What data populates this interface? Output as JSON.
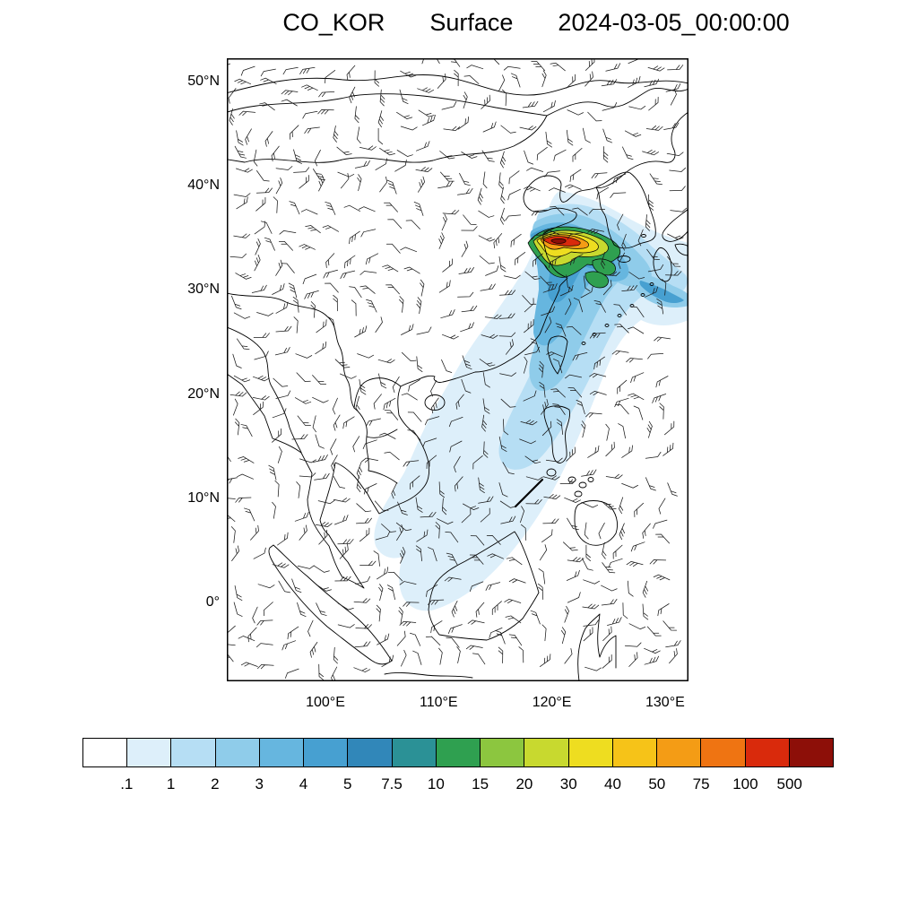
{
  "title": {
    "species": "CO_KOR",
    "level": "Surface",
    "datetime": "2024-03-05_00:00:00"
  },
  "axes": {
    "lat_labels": [
      {
        "text": "50°N",
        "value": 50
      },
      {
        "text": "40°N",
        "value": 40
      },
      {
        "text": "30°N",
        "value": 30
      },
      {
        "text": "20°N",
        "value": 20
      },
      {
        "text": "10°N",
        "value": 10
      },
      {
        "text": "0°",
        "value": 0
      }
    ],
    "lon_labels": [
      {
        "text": "100°E",
        "value": 100
      },
      {
        "text": "110°E",
        "value": 110
      },
      {
        "text": "120°E",
        "value": 120
      },
      {
        "text": "130°E",
        "value": 130
      }
    ]
  },
  "colorbar": {
    "tick_labels": [
      ".1",
      "1",
      "2",
      "3",
      "4",
      "5",
      "7.5",
      "10",
      "15",
      "20",
      "30",
      "40",
      "50",
      "75",
      "100",
      "500"
    ],
    "colors": [
      "#ffffff",
      "#ddeffa",
      "#b6def4",
      "#8fccea",
      "#66b6df",
      "#47a0d1",
      "#3187b9",
      "#2b9196",
      "#2fa050",
      "#8cc63f",
      "#c8d92f",
      "#eedd20",
      "#f6c318",
      "#f49c15",
      "#ef7412",
      "#d92a0c",
      "#8d0f08"
    ]
  },
  "chart_data": {
    "type": "heatmap",
    "title": "CO_KOR Surface 2024-03-05_00:00:00",
    "variable": "CO_KOR",
    "level_type": "Surface",
    "valid_time": "2024-03-05_00:00:00",
    "map_extent": {
      "lon_min": 91.3,
      "lon_max": 132.1,
      "lat_min": -7.5,
      "lat_max": 52.3
    },
    "contour_levels": [
      0.1,
      1,
      2,
      3,
      4,
      5,
      7.5,
      10,
      15,
      20,
      30,
      40,
      50,
      75,
      100,
      500
    ],
    "palette": [
      "#ffffff",
      "#ddeffa",
      "#b6def4",
      "#8fccea",
      "#66b6df",
      "#47a0d1",
      "#3187b9",
      "#2b9196",
      "#2fa050",
      "#8cc63f",
      "#c8d92f",
      "#eedd20",
      "#f6c318",
      "#f49c15",
      "#ef7412",
      "#d92a0c",
      "#8d0f08"
    ],
    "overlays": [
      "wind-barbs",
      "coastlines",
      "national-borders"
    ],
    "plume": {
      "max_region": {
        "lon": 120.5,
        "lat": 35.5,
        "description": "CO maximum (>100) over the Yellow Sea / Korea region"
      },
      "extent_description": "Plume >=0.1 stretches southwest across eastern China and the South China Sea toward the equator, and eastward past Japan to the map edge"
    }
  }
}
